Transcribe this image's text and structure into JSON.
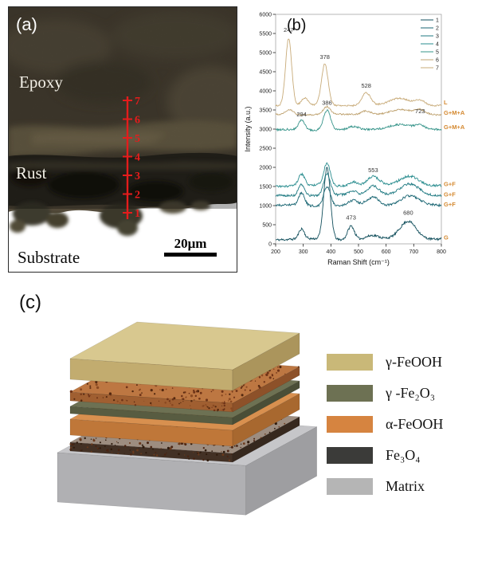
{
  "figure": {
    "panel_a": {
      "label": "(a)",
      "epoxy_label": "Epoxy",
      "rust_label": "Rust",
      "substrate_label": "Substrate",
      "scale_bar_label": "20μm",
      "point_numbers": [
        "7",
        "6",
        "5",
        "4",
        "3",
        "2",
        "1"
      ],
      "line_color": "#e41c1c"
    },
    "panel_b": {
      "label": "(b)"
    },
    "panel_c": {
      "label": "(c)",
      "legend": [
        {
          "label": "γ-FeOOH",
          "color": "#c9b878"
        },
        {
          "label": "γ -Fe₂O₃",
          "color": "#6d7153"
        },
        {
          "label": "α-FeOOH",
          "color": "#d68440"
        },
        {
          "label": "Fe₃O₄",
          "color": "#3b3b39"
        },
        {
          "label": "Matrix",
          "color": "#b5b5b5"
        }
      ],
      "stack": {
        "layers": [
          {
            "name": "gamma-FeOOH",
            "h": 26,
            "gap": 16,
            "top": "#d8c88f",
            "front": "#c2ac6f",
            "side": "#ab955c"
          },
          {
            "name": "alpha-FeOOH-thin",
            "h": 11,
            "gap": 7,
            "top": "#bd7742",
            "front": "#a05f31",
            "side": "#8d5129",
            "speckle": true,
            "speckle_colors": [
              "#6f3418",
              "#53280f",
              "#8a4a22"
            ]
          },
          {
            "name": "gamma-Fe2O3",
            "h": 9,
            "gap": 7,
            "top": "#6d7153",
            "front": "#585c41",
            "side": "#4a4e37"
          },
          {
            "name": "alpha-FeOOH",
            "h": 20,
            "gap": 9,
            "top": "#d8904f",
            "front": "#bf7739",
            "side": "#a8682f"
          },
          {
            "name": "Fe3O4",
            "h": 11,
            "gap": 2,
            "top": "#9d8d80",
            "front": "#433125",
            "side": "#36281e",
            "speckle": true,
            "speckle_colors": [
              "#4a2412",
              "#2e1a0c",
              "#6b3a1c"
            ]
          },
          {
            "name": "matrix",
            "h": 62,
            "gap": 0,
            "top": "#c6c6c9",
            "front": "#b0b0b3",
            "side": "#9e9ea1",
            "x_off": -16,
            "w_scale": 1.16,
            "d_scale": 1.06
          }
        ]
      }
    }
  },
  "chart_data": {
    "type": "line",
    "title": "",
    "xlabel": "Raman Shift (cm⁻¹)",
    "ylabel": "Intensity (a.u.)",
    "xlim": [
      200,
      800
    ],
    "ylim": [
      0,
      6000
    ],
    "x_ticks": [
      200,
      300,
      400,
      500,
      600,
      700,
      800
    ],
    "y_ticks": [
      0,
      500,
      1000,
      1500,
      2000,
      2500,
      3000,
      3500,
      4000,
      4500,
      5000,
      5500,
      6000
    ],
    "grid": false,
    "legend_position": "top-right",
    "legend_labels": [
      "1",
      "2",
      "3",
      "4",
      "5",
      "6",
      "7"
    ],
    "series": [
      {
        "name": "1",
        "assignment": "G",
        "color": "#124f5c",
        "offset": 120,
        "noise": 60,
        "peaks": [
          [
            294,
            10,
            260
          ],
          [
            386,
            12,
            1880
          ],
          [
            473,
            12,
            360
          ],
          [
            550,
            22,
            90
          ],
          [
            680,
            30,
            480
          ]
        ]
      },
      {
        "name": "2",
        "assignment": "G+F",
        "color": "#1a6673",
        "offset": 1000,
        "noise": 60,
        "peaks": [
          [
            294,
            11,
            320
          ],
          [
            386,
            12,
            520
          ],
          [
            480,
            16,
            120
          ],
          [
            553,
            22,
            220
          ],
          [
            685,
            34,
            260
          ]
        ]
      },
      {
        "name": "3",
        "assignment": "G+F",
        "color": "#1f7a82",
        "offset": 1270,
        "noise": 60,
        "peaks": [
          [
            294,
            11,
            300
          ],
          [
            386,
            12,
            560
          ],
          [
            480,
            16,
            110
          ],
          [
            553,
            22,
            260
          ],
          [
            685,
            34,
            280
          ]
        ]
      },
      {
        "name": "4",
        "assignment": "G+F",
        "color": "#2a8d8f",
        "offset": 1520,
        "noise": 60,
        "peaks": [
          [
            294,
            11,
            300
          ],
          [
            386,
            12,
            580
          ],
          [
            480,
            16,
            110
          ],
          [
            553,
            22,
            230
          ],
          [
            685,
            34,
            260
          ]
        ]
      },
      {
        "name": "5",
        "assignment": "G+M+A",
        "color": "#36948a",
        "offset": 2980,
        "noise": 50,
        "peaks": [
          [
            294,
            11,
            240
          ],
          [
            386,
            13,
            520
          ],
          [
            480,
            18,
            80
          ],
          [
            650,
            42,
            150
          ],
          [
            723,
            18,
            90
          ]
        ]
      },
      {
        "name": "6",
        "assignment": "G+M+A",
        "color": "#c0a473",
        "offset": 3380,
        "noise": 40,
        "peaks": [
          [
            250,
            14,
            130
          ],
          [
            386,
            13,
            200
          ],
          [
            528,
            18,
            100
          ],
          [
            650,
            40,
            120
          ],
          [
            723,
            18,
            110
          ]
        ]
      },
      {
        "name": "7",
        "assignment": "L",
        "color": "#c8ab79",
        "offset": 3620,
        "noise": 40,
        "peaks": [
          [
            247,
            11,
            1760
          ],
          [
            305,
            12,
            190
          ],
          [
            378,
            12,
            1070
          ],
          [
            528,
            16,
            330
          ],
          [
            650,
            36,
            180
          ],
          [
            723,
            18,
            130
          ]
        ]
      }
    ],
    "peak_labels": [
      {
        "x": 247,
        "y": 5540,
        "text": "247"
      },
      {
        "x": 378,
        "y": 4830,
        "text": "378"
      },
      {
        "x": 528,
        "y": 4080,
        "text": "528"
      },
      {
        "x": 386,
        "y": 3640,
        "text": "386"
      },
      {
        "x": 294,
        "y": 3330,
        "text": "294"
      },
      {
        "x": 723,
        "y": 3420,
        "text": "723"
      },
      {
        "x": 553,
        "y": 1880,
        "text": "553"
      },
      {
        "x": 473,
        "y": 640,
        "text": "473"
      },
      {
        "x": 680,
        "y": 760,
        "text": "680"
      }
    ],
    "right_labels": [
      {
        "text": "L",
        "y": 3700
      },
      {
        "text": "G+M+A",
        "y": 3430
      },
      {
        "text": "G+M+A",
        "y": 3050
      },
      {
        "text": "G+F",
        "y": 1560
      },
      {
        "text": "G+F",
        "y": 1290
      },
      {
        "text": "G+F",
        "y": 1030
      },
      {
        "text": "G",
        "y": 170
      }
    ],
    "right_label_color": "#d4882f"
  }
}
